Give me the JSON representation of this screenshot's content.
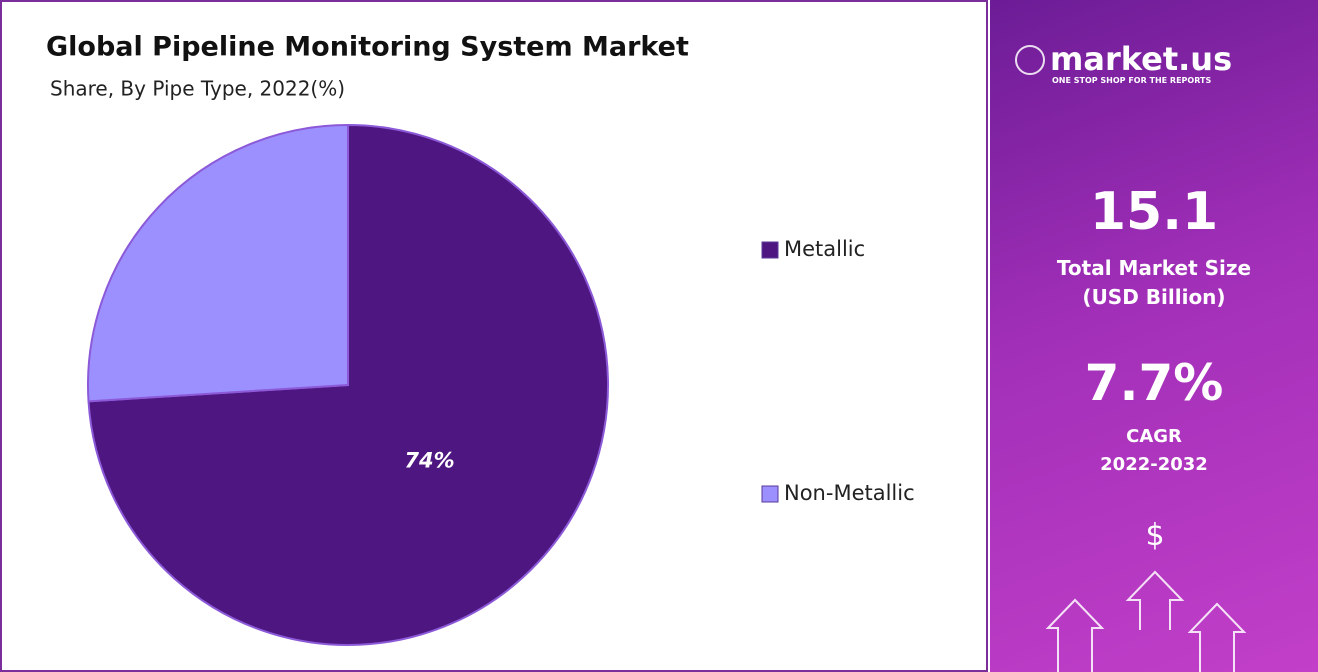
{
  "chart_data": {
    "type": "pie",
    "title": "Global Pipeline Monitoring System Market",
    "subtitle": "Share, By Pipe Type, 2022(%)",
    "categories": [
      "Metallic",
      "Non-Metallic"
    ],
    "values": [
      74,
      26
    ],
    "value_labels": [
      "74%",
      null
    ],
    "colors": [
      "#4e1680",
      "#9c90ff"
    ]
  },
  "panel": {
    "brand": "market.us",
    "tagline": "ONE STOP SHOP FOR THE REPORTS",
    "market_size": "15.1",
    "market_size_label": "Total Market Size",
    "market_size_unit": "(USD Billion)",
    "cagr": "7.7%",
    "cagr_label": "CAGR",
    "cagr_period": "2022-2032"
  }
}
